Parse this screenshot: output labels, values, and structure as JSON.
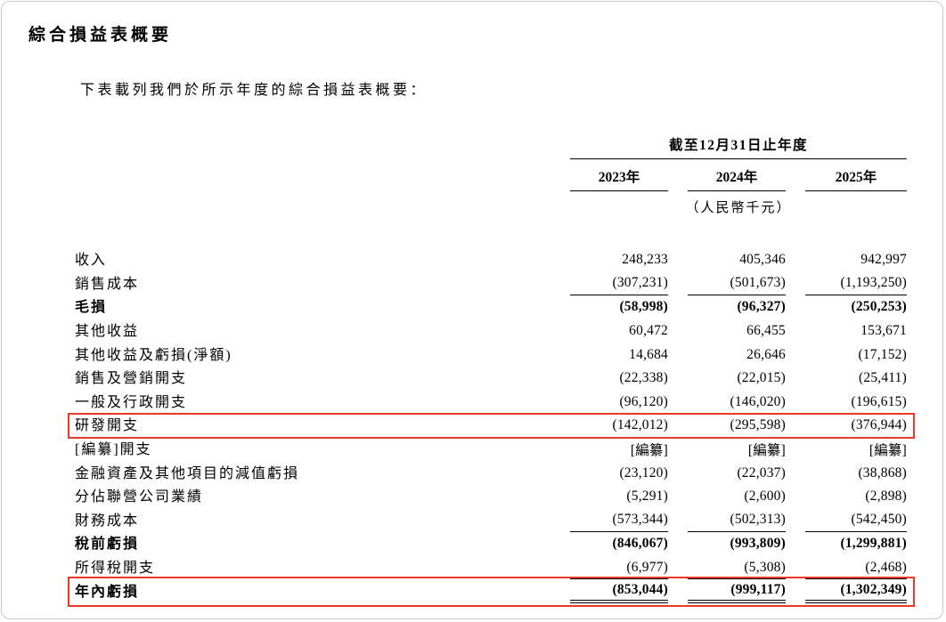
{
  "page": {
    "title": "綜合損益表概要",
    "intro": "下表載列我們於所示年度的綜合損益表概要："
  },
  "table": {
    "period_header": "截至12月31日止年度",
    "years": [
      "2023年",
      "2024年",
      "2025年"
    ],
    "currency_note": "（人民幣千元）",
    "highlight_color": "#e8382a",
    "rows": [
      {
        "label": "收入",
        "values": [
          "248,233",
          "405,346",
          "942,997"
        ]
      },
      {
        "label": "銷售成本",
        "values": [
          "(307,231)",
          "(501,673)",
          "(1,193,250)"
        ],
        "rule": true
      },
      {
        "label": "毛損",
        "values": [
          "(58,998)",
          "(96,327)",
          "(250,253)"
        ],
        "bold": true
      },
      {
        "label": "其他收益",
        "values": [
          "60,472",
          "66,455",
          "153,671"
        ]
      },
      {
        "label": "其他收益及虧損(淨額)",
        "values": [
          "14,684",
          "26,646",
          "(17,152)"
        ]
      },
      {
        "label": "銷售及營銷開支",
        "values": [
          "(22,338)",
          "(22,015)",
          "(25,411)"
        ]
      },
      {
        "label": "一般及行政開支",
        "values": [
          "(96,120)",
          "(146,020)",
          "(196,615)"
        ]
      },
      {
        "label": "研發開支",
        "values": [
          "(142,012)",
          "(295,598)",
          "(376,944)"
        ],
        "box": true
      },
      {
        "label": "[編纂]開支",
        "values": [
          "[編纂]",
          "[編纂]",
          "[編纂]"
        ]
      },
      {
        "label": "金融資產及其他項目的減值虧損",
        "values": [
          "(23,120)",
          "(22,037)",
          "(38,868)"
        ]
      },
      {
        "label": "分佔聯營公司業績",
        "values": [
          "(5,291)",
          "(2,600)",
          "(2,898)"
        ]
      },
      {
        "label": "財務成本",
        "values": [
          "(573,344)",
          "(502,313)",
          "(542,450)"
        ],
        "rule": true
      },
      {
        "label": "稅前虧損",
        "values": [
          "(846,067)",
          "(993,809)",
          "(1,299,881)"
        ],
        "bold": true
      },
      {
        "label": "所得稅開支",
        "values": [
          "(6,977)",
          "(5,308)",
          "(2,468)"
        ],
        "rule": true
      },
      {
        "label": "年內虧損",
        "values": [
          "(853,044)",
          "(999,117)",
          "(1,302,349)"
        ],
        "bold": true,
        "box": true,
        "drule": true
      }
    ]
  }
}
